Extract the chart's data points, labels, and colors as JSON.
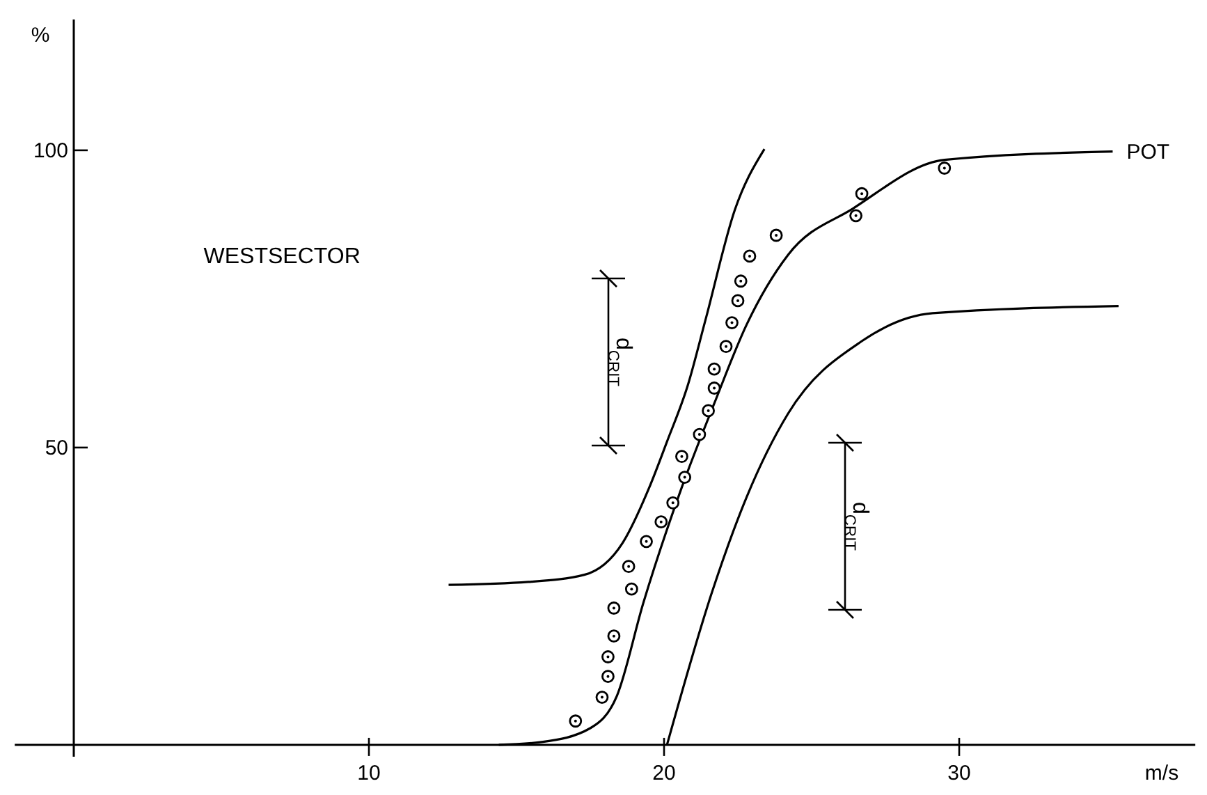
{
  "chart_data": {
    "type": "line",
    "xlabel": "m/s",
    "ylabel": "%",
    "xlim": [
      -2,
      38
    ],
    "ylim": [
      -2,
      122
    ],
    "xticks": [
      10,
      20,
      30
    ],
    "yticks": [
      50,
      100
    ],
    "grid": false,
    "line_style": "solid",
    "marker": "none",
    "annotations": [
      "WESTSECTOR",
      "d$_{CRIT}$",
      "d$_{CRIT}$"
    ],
    "series": [
      {
        "color": "#000000",
        "x": [
          12.7,
          15.4,
          17.3,
          18.6,
          19.5,
          20.1,
          20.8,
          21.4,
          22.4,
          23.4
        ],
        "values": [
          26.9,
          27.4,
          28.6,
          34,
          43.3,
          51,
          60.4,
          71.4,
          90,
          100.2
        ]
      },
      {
        "name": "POT",
        "color": "#000000",
        "x": [
          14.4,
          15.9,
          17.5,
          18.4,
          19.3,
          20.6,
          21.7,
          22.8,
          24.2,
          26.4,
          29.5,
          35.2
        ],
        "values": [
          0,
          0.5,
          2.8,
          8.2,
          23.9,
          43.3,
          57.4,
          70.7,
          82.4,
          90.2,
          98.4,
          99.8
        ]
      },
      {
        "color": "#000000",
        "x": [
          20.1,
          21.6,
          22.8,
          24.2,
          26.7,
          29.1,
          35.4
        ],
        "values": [
          0,
          25.3,
          41.7,
          55.7,
          67.9,
          72.6,
          73.8
        ]
      },
      {
        "type": "scatter",
        "marker": "circle",
        "color": "#000000",
        "x": [
          17.0,
          17.9,
          18.1,
          18.1,
          18.3,
          18.3,
          18.9,
          18.8,
          19.4,
          19.9,
          20.3,
          20.7,
          20.6,
          21.2,
          21.5,
          21.7,
          21.7,
          22.1,
          22.3,
          22.5,
          22.6,
          22.9,
          23.8,
          26.5,
          26.7,
          29.5
        ],
        "values": [
          4,
          8,
          11.5,
          14.8,
          18.3,
          23,
          26.2,
          30,
          34.2,
          37.5,
          40.7,
          45,
          48.5,
          52.2,
          56.2,
          60,
          63.2,
          67,
          71,
          74.7,
          78,
          82.2,
          85.7,
          89,
          92.7,
          97
        ]
      }
    ]
  }
}
